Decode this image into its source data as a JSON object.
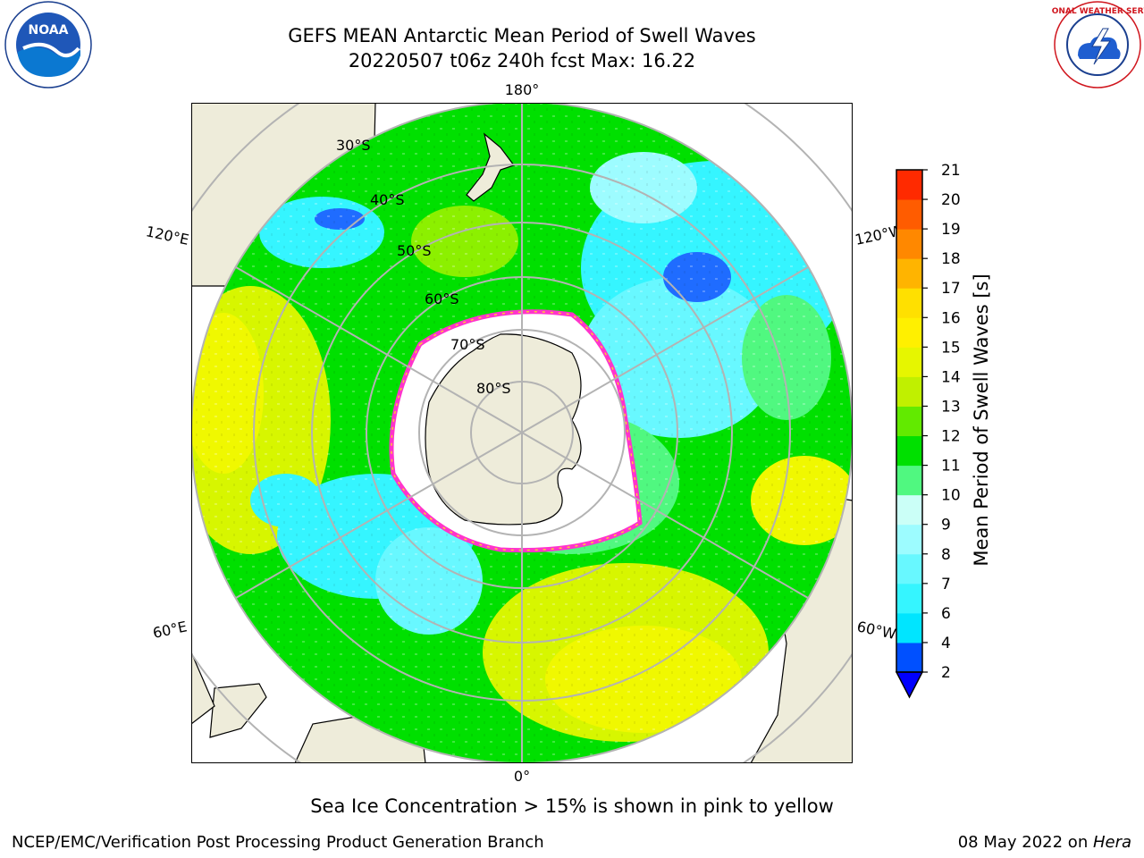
{
  "header": {
    "title_line1": "GEFS MEAN Antarctic Mean Period of Swell Waves",
    "title_line2": "20220507 t06z 240h fcst   Max: 16.22"
  },
  "logos": {
    "left": {
      "icon": "noaa-logo",
      "text": "NOAA"
    },
    "right": {
      "icon": "national-weather-service-logo",
      "text": "NATIONAL WEATHER SERVICE"
    }
  },
  "map": {
    "projection": "south-polar-stereographic",
    "longitude_labels": {
      "top": "180°",
      "bottom": "0°",
      "upper_left": "120°E",
      "lower_left": "60°E",
      "upper_right": "120°W",
      "lower_right": "60°W"
    },
    "latitude_labels": [
      "30°S",
      "40°S",
      "50°S",
      "60°S",
      "70°S",
      "80°S"
    ],
    "colors": {
      "land": "#eeecda",
      "sea_ice_low": "#ff33cc",
      "sea_ice_high": "#ffcc33",
      "grid": "#b3b3b3"
    }
  },
  "colorbar": {
    "label": "Mean Period of Swell Waves [s]",
    "ticks": [
      "2",
      "4",
      "6",
      "7",
      "8",
      "9",
      "10",
      "11",
      "12",
      "13",
      "14",
      "15",
      "16",
      "17",
      "18",
      "19",
      "20",
      "21"
    ],
    "colors": [
      "#0050ff",
      "#00e5ff",
      "#35f5ff",
      "#68f8ff",
      "#9dfcff",
      "#cbfff7",
      "#50f880",
      "#00e000",
      "#62ea00",
      "#c0f000",
      "#e6f600",
      "#fff000",
      "#ffe000",
      "#ffb400",
      "#ff8800",
      "#ff5c00",
      "#ff2a00",
      "#ff0000"
    ],
    "extend_color": "#0000ff"
  },
  "note": "Sea Ice Concentration > 15% is shown in pink to yellow",
  "footer": {
    "left": "NCEP/EMC/Verification Post Processing Product Generation Branch",
    "right_date": "08 May 2022 on ",
    "right_host": "Hera"
  }
}
